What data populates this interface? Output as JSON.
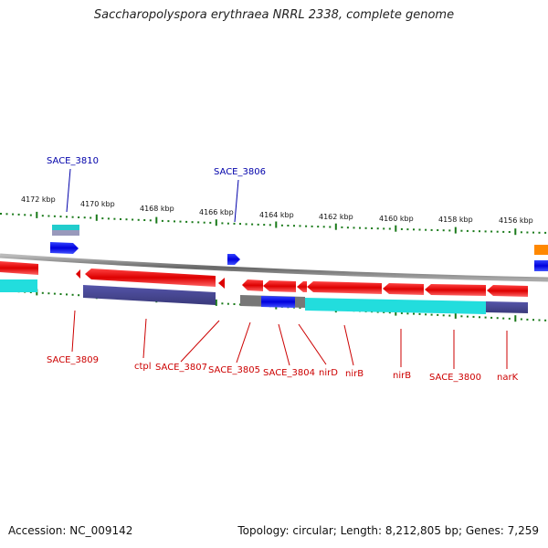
{
  "title": "Saccharopolyspora erythraea NRRL 2338, complete genome",
  "footer": {
    "accession": "Accession: NC_009142",
    "summary": "Topology: circular; Length: 8,212,805 bp; Genes: 7,259"
  },
  "colors": {
    "forward_cds": "#1010e0",
    "reverse_cds": "#e00000",
    "backbone": "#888888",
    "tick": "#1a7a1a",
    "label_forward": "#0000aa",
    "label_reverse": "#cc0000",
    "rna": "#00cccc",
    "cog": "#444488",
    "other": "#ff8800"
  },
  "scale": {
    "labels": [
      "4172 kbp",
      "4170 kbp",
      "4168 kbp",
      "4166 kbp",
      "4164 kbp",
      "4162 kbp",
      "4160 kbp",
      "4158 kbp",
      "4156 kbp"
    ]
  },
  "genes_forward": [
    {
      "label": "SACE_3810"
    },
    {
      "label": "SACE_3806"
    }
  ],
  "genes_reverse": [
    {
      "label": "SACE_3809"
    },
    {
      "label": "ctpl"
    },
    {
      "label": "SACE_3807"
    },
    {
      "label": "SACE_3805"
    },
    {
      "label": "SACE_3804"
    },
    {
      "label": "nirD"
    },
    {
      "label": "nirB"
    },
    {
      "label": "nirB"
    },
    {
      "label": "SACE_3800"
    },
    {
      "label": "narK"
    }
  ]
}
